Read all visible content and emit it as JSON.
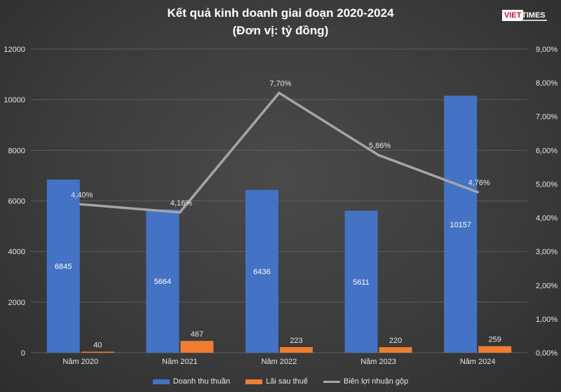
{
  "header": {
    "title": "Kết quả kinh doanh giai đoạn 2020-2024",
    "subtitle": "(Đơn vị: tỷ đồng)"
  },
  "logo": {
    "part1": "VIET",
    "part2": "TIMES"
  },
  "chart_data": {
    "type": "bar",
    "title": "Kết quả kinh doanh giai đoạn 2020-2024",
    "subtitle": "(Đơn vị: tỷ đồng)",
    "categories": [
      "Năm 2020",
      "Năm 2021",
      "Năm 2022",
      "Năm 2023",
      "Năm 2024"
    ],
    "series": [
      {
        "name": "Doanh thu thuần",
        "type": "bar",
        "axis": "left",
        "color": "#4472c4",
        "values": [
          6845,
          5664,
          6436,
          5611,
          10157
        ],
        "labels": [
          "6845",
          "5664",
          "6436",
          "5611",
          "10157"
        ]
      },
      {
        "name": "Lãi sau thuế",
        "type": "bar",
        "axis": "left",
        "color": "#ed7d31",
        "values": [
          40,
          467,
          223,
          220,
          259
        ],
        "labels": [
          "40",
          "467",
          "223",
          "220",
          "259"
        ]
      },
      {
        "name": "Biên lợi nhuận gộp",
        "type": "line",
        "axis": "right",
        "color": "#a5a5a5",
        "values": [
          4.4,
          4.16,
          7.7,
          5.86,
          4.76
        ],
        "labels": [
          "4,40%",
          "4,16%",
          "7,70%",
          "5,86%",
          "4,76%"
        ]
      }
    ],
    "ylim": [
      0,
      12000
    ],
    "y_ticks": [
      "0",
      "2000",
      "4000",
      "6000",
      "8000",
      "10000",
      "12000"
    ],
    "y2lim": [
      0,
      9
    ],
    "y2_ticks": [
      "0,00%",
      "1,00%",
      "2,00%",
      "3,00%",
      "4,00%",
      "5,00%",
      "6,00%",
      "7,00%",
      "8,00%",
      "9,00%"
    ],
    "grid": true,
    "legend": "bottom"
  }
}
